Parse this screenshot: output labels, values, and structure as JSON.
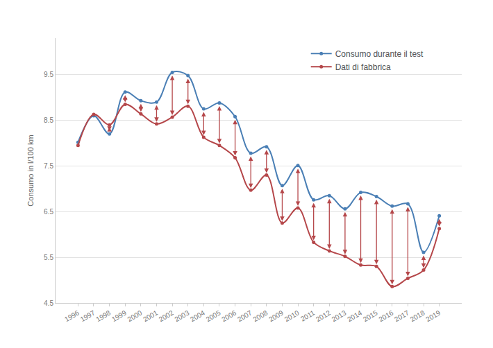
{
  "chart_data": {
    "type": "line",
    "y_label": "Consumo in l/100 km",
    "categories": [
      "1996",
      "1997",
      "1998",
      "1999",
      "2000",
      "2001",
      "2002",
      "2003",
      "2004",
      "2005",
      "2006",
      "2007",
      "2008",
      "2009",
      "2010",
      "2011",
      "2012",
      "2013",
      "2014",
      "2015",
      "2016",
      "2017",
      "2018",
      "2019"
    ],
    "series": [
      {
        "name": "Consumo durante il test",
        "color": "#4a7fb5",
        "values": [
          8.02,
          8.6,
          8.2,
          9.12,
          8.93,
          8.9,
          9.55,
          9.48,
          8.75,
          8.88,
          8.58,
          7.78,
          7.92,
          7.07,
          7.51,
          6.76,
          6.85,
          6.56,
          6.92,
          6.83,
          6.62,
          6.67,
          5.61,
          6.41
        ]
      },
      {
        "name": "Dati di fabbrica",
        "color": "#b5474a",
        "values": [
          7.95,
          8.63,
          8.4,
          8.85,
          8.64,
          8.42,
          8.57,
          8.81,
          8.13,
          7.95,
          7.68,
          6.97,
          7.3,
          6.25,
          6.58,
          5.83,
          5.64,
          5.52,
          5.33,
          5.3,
          4.86,
          5.04,
          5.22,
          6.13
        ]
      }
    ],
    "ylim": [
      4.5,
      10.3
    ],
    "yticks": [
      4.5,
      5.5,
      6.5,
      7.5,
      8.5,
      9.5
    ],
    "grid": true,
    "legend": "top right",
    "marker": "circle",
    "line_style": "smooth"
  }
}
